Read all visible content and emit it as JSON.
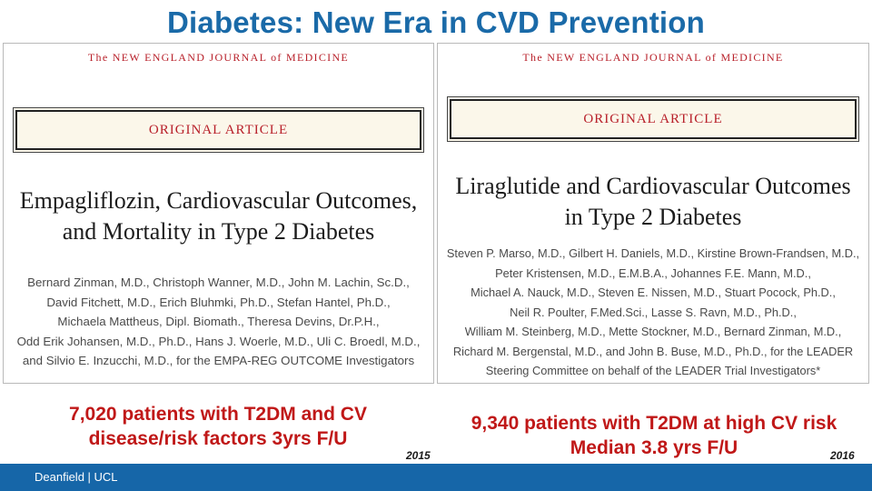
{
  "slide": {
    "title": "Diabetes: New Era in CVD Prevention",
    "footer": "Deanfield | UCL"
  },
  "panels": [
    {
      "journal": "The NEW ENGLAND JOURNAL of MEDICINE",
      "article_type": "ORIGINAL ARTICLE",
      "title_lines": [
        "Empagliflozin, Cardiovascular Outcomes,",
        "and Mortality in Type 2 Diabetes"
      ],
      "author_lines": [
        "Bernard Zinman, M.D., Christoph Wanner, M.D., John M. Lachin, Sc.D.,",
        "David Fitchett, M.D., Erich Bluhmki, Ph.D., Stefan Hantel, Ph.D.,",
        "Michaela Mattheus, Dipl. Biomath., Theresa Devins, Dr.P.H.,",
        "Odd Erik Johansen, M.D., Ph.D., Hans J. Woerle, M.D., Uli C. Broedl, M.D.,",
        "and Silvio E. Inzucchi, M.D., for the EMPA-REG OUTCOME Investigators"
      ],
      "summary_lines": [
        "7,020 patients with T2DM and CV",
        "disease/risk factors 3yrs F/U"
      ],
      "year": "2015"
    },
    {
      "journal": "The NEW ENGLAND JOURNAL of MEDICINE",
      "article_type": "ORIGINAL ARTICLE",
      "title_lines": [
        "Liraglutide and Cardiovascular Outcomes",
        "in Type 2 Diabetes"
      ],
      "author_lines": [
        "Steven P. Marso, M.D., Gilbert H. Daniels, M.D., Kirstine Brown-Frandsen, M.D.,",
        "Peter Kristensen, M.D., E.M.B.A., Johannes F.E. Mann, M.D.,",
        "Michael A. Nauck, M.D., Steven E. Nissen, M.D., Stuart Pocock, Ph.D.,",
        "Neil R. Poulter, F.Med.Sci., Lasse S. Ravn, M.D., Ph.D.,",
        "William M. Steinberg, M.D., Mette Stockner, M.D., Bernard Zinman, M.D.,",
        "Richard M. Bergenstal, M.D., and John B. Buse, M.D., Ph.D., for the LEADER",
        "Steering Committee on behalf of the LEADER Trial Investigators*"
      ],
      "summary_lines": [
        "9,340 patients with T2DM at high CV risk",
        "Median 3.8 yrs F/U"
      ],
      "year": "2016"
    }
  ],
  "colors": {
    "title_blue": "#1a6aa8",
    "journal_red": "#b8202a",
    "stat_red": "#c01818",
    "footer_blue": "#1666a8"
  }
}
